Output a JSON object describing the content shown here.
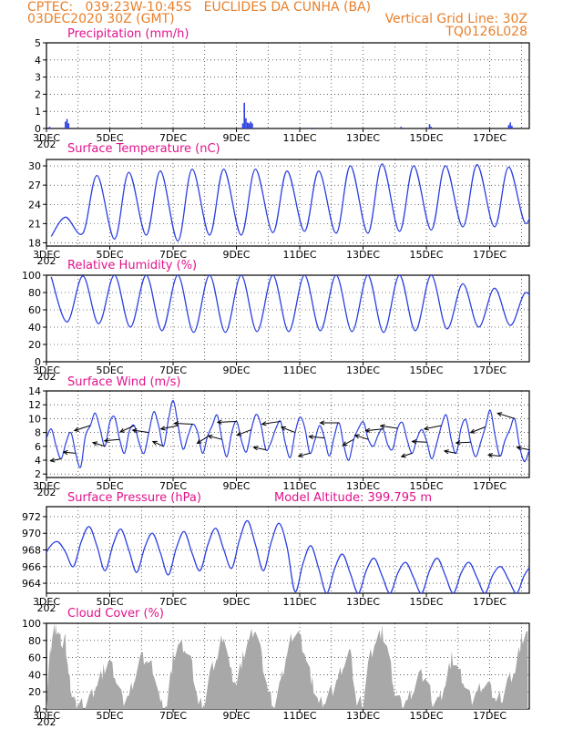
{
  "header": {
    "line1_left": "CPTEC:   039:23W-10:45S   EUCLIDES DA CUNHA (BA)",
    "line2_left": "03DEC2020 30Z (GMT)",
    "line2_right": "Vertical Grid Line: 30Z",
    "line3_right": "TQ0126L028"
  },
  "colors": {
    "header": "#e8802a",
    "panel_title": "#e0138c",
    "series_line": "#2b3fe0",
    "wind_vectors": "#000000",
    "cloud_fill": "#a8a8a8",
    "grid": "#000000"
  },
  "x_axis": {
    "labels": [
      "3DEC",
      "5DEC",
      "7DEC",
      "9DEC",
      "11DEC",
      "13DEC",
      "15DEC",
      "17DEC"
    ],
    "clipped_start_label": "202",
    "range_days": [
      3,
      18.25
    ]
  },
  "chart_data": [
    {
      "id": "precipitation",
      "type": "bar",
      "title": "Precipitation (mm/h)",
      "ylim": [
        0,
        5
      ],
      "yticks": [
        0,
        1,
        2,
        3,
        4,
        5
      ],
      "grid": true,
      "x_unit": "day of December 2020",
      "x": [
        3.05,
        3.1,
        3.6,
        3.65,
        3.7,
        5.7,
        9.2,
        9.25,
        9.3,
        9.35,
        9.4,
        9.45,
        9.5,
        11.4,
        14.2,
        15.1,
        15.15,
        17.6,
        17.65,
        17.7
      ],
      "values": [
        0.05,
        0.1,
        0.4,
        0.55,
        0.3,
        0.05,
        0.3,
        1.5,
        0.6,
        0.35,
        0.3,
        0.4,
        0.3,
        0.05,
        0.1,
        0.25,
        0.1,
        0.2,
        0.35,
        0.15
      ]
    },
    {
      "id": "temperature",
      "type": "line",
      "title": "Surface Temperature (nC)",
      "ylim": [
        17.5,
        31
      ],
      "yticks": [
        18,
        21,
        24,
        27,
        30
      ],
      "grid": true,
      "x_unit": "day of December 2020",
      "daily_peak_day_offset": 0.6,
      "days": [
        3,
        4,
        5,
        6,
        7,
        8,
        9,
        10,
        11,
        12,
        13,
        14,
        15,
        16,
        17,
        18
      ],
      "daily_max": [
        22,
        28.5,
        29,
        29.2,
        29.5,
        29.5,
        29.5,
        29.2,
        29.2,
        30,
        30.3,
        30,
        30,
        30.2,
        29.8,
        30.2
      ],
      "daily_min": [
        19,
        19.5,
        18.6,
        19.2,
        18.3,
        19.2,
        19.2,
        19.6,
        19.8,
        19.5,
        19.5,
        19.8,
        20,
        20.5,
        20.5,
        21
      ]
    },
    {
      "id": "humidity",
      "type": "line",
      "title": "Relative Humidity (%)",
      "ylim": [
        0,
        100
      ],
      "yticks": [
        0,
        20,
        40,
        60,
        80,
        100
      ],
      "grid": true,
      "x_unit": "day of December 2020",
      "daily_low_day_offset": 0.65,
      "days": [
        3,
        4,
        5,
        6,
        7,
        8,
        9,
        10,
        11,
        12,
        13,
        14,
        15,
        16,
        17,
        18
      ],
      "daily_max": [
        98,
        99,
        100,
        100,
        100,
        100,
        100,
        100,
        100,
        100,
        100,
        100,
        100,
        90,
        85,
        80
      ],
      "daily_min": [
        46,
        44,
        40,
        36,
        34,
        34,
        35,
        35,
        36,
        35,
        34,
        36,
        38,
        40,
        42,
        44
      ]
    },
    {
      "id": "wind",
      "type": "line",
      "title": "Surface Wind (m/s)",
      "ylim": [
        1.5,
        14
      ],
      "yticks": [
        2,
        4,
        6,
        8,
        10,
        12,
        14
      ],
      "grid": true,
      "x_unit": "day of December 2020",
      "speed": [
        7.2,
        8.5,
        6,
        4.2,
        6.5,
        8,
        5,
        3,
        7.5,
        9,
        10.8,
        8.5,
        6,
        9.5,
        10.2,
        7,
        5,
        8.2,
        9,
        6.5,
        5,
        8,
        11,
        9,
        6,
        9.8,
        12.6,
        9,
        5.6,
        7.5,
        9.2,
        8,
        5,
        7.4,
        9,
        10.5,
        7,
        4.5,
        8,
        9.6,
        6.8,
        5.2,
        8.4,
        10.6,
        9,
        5.5,
        6.5,
        8.5,
        9.6,
        6.4,
        4.4,
        8,
        10.2,
        8.6,
        5,
        6.8,
        9,
        7.2,
        4.6,
        7.4,
        9.4,
        6,
        4,
        7,
        8.6,
        9.5,
        7,
        6,
        7.6,
        8.5,
        6.2,
        5.6,
        8.6,
        9.4,
        6.8,
        5,
        7.2,
        8.4,
        6.6,
        4.2,
        6.4,
        9,
        10.5,
        7,
        5,
        8.6,
        9.8,
        6.6,
        4.5,
        6.5,
        8.8,
        11.2,
        7.5,
        4.6,
        6.8,
        8.4,
        10,
        6,
        3.8,
        5.5
      ],
      "arrow_stride": 3
    },
    {
      "id": "pressure",
      "type": "line",
      "title": "Surface Pressure (hPa)",
      "annotation": "Model Altitude: 399.795 m",
      "ylim": [
        962.8,
        973.2
      ],
      "yticks": [
        964,
        966,
        968,
        970,
        972
      ],
      "grid": true,
      "x_unit": "day of December 2020",
      "cycle_day_offset": 0.35,
      "days": [
        3,
        4,
        5,
        6,
        7,
        8,
        9,
        10,
        11,
        12,
        13,
        14,
        15,
        16,
        17,
        18
      ],
      "daily_max": [
        969,
        970.8,
        970.5,
        970,
        970.2,
        970.6,
        971.5,
        971.2,
        968.5,
        967.5,
        967,
        966.5,
        967,
        966.5,
        966,
        966
      ],
      "daily_min": [
        966.5,
        966,
        965.5,
        965.3,
        965,
        965.5,
        965.8,
        965.5,
        963,
        962.8,
        962.8,
        962.8,
        962.8,
        962.8,
        962.8,
        962.8
      ]
    },
    {
      "id": "cloud",
      "type": "area",
      "title": "Cloud Cover (%)",
      "ylim": [
        0,
        100
      ],
      "yticks": [
        0,
        20,
        40,
        60,
        80,
        100
      ],
      "grid": true,
      "x_unit": "day of December 2020",
      "x": [
        3,
        3.1,
        3.2,
        3.3,
        3.4,
        3.5,
        3.6,
        3.7,
        3.8,
        3.9,
        4,
        4.2,
        4.4,
        4.6,
        4.8,
        5,
        5.2,
        5.4,
        5.6,
        5.8,
        6,
        6.2,
        6.4,
        6.6,
        6.8,
        7,
        7.2,
        7.4,
        7.6,
        7.8,
        8,
        8.2,
        8.4,
        8.6,
        8.8,
        9,
        9.2,
        9.4,
        9.6,
        9.8,
        10,
        10.2,
        10.4,
        10.6,
        10.8,
        11,
        11.2,
        11.4,
        11.6,
        11.8,
        12,
        12.2,
        12.4,
        12.6,
        12.8,
        13,
        13.2,
        13.4,
        13.6,
        13.8,
        14,
        14.2,
        14.4,
        14.6,
        14.8,
        15,
        15.2,
        15.4,
        15.6,
        15.8,
        16,
        16.2,
        16.4,
        16.6,
        16.8,
        17,
        17.2,
        17.4,
        17.6,
        17.8,
        18,
        18.2
      ],
      "values": [
        10,
        60,
        90,
        95,
        85,
        75,
        80,
        40,
        20,
        5,
        5,
        5,
        15,
        30,
        45,
        55,
        35,
        10,
        15,
        40,
        60,
        55,
        45,
        5,
        5,
        60,
        75,
        70,
        50,
        5,
        10,
        45,
        60,
        90,
        45,
        30,
        60,
        80,
        95,
        60,
        20,
        5,
        30,
        65,
        90,
        85,
        60,
        30,
        5,
        10,
        20,
        35,
        55,
        65,
        5,
        10,
        60,
        80,
        90,
        65,
        20,
        5,
        10,
        25,
        40,
        35,
        10,
        10,
        30,
        60,
        45,
        30,
        10,
        20,
        30,
        25,
        10,
        15,
        35,
        45,
        80,
        90
      ]
    }
  ]
}
